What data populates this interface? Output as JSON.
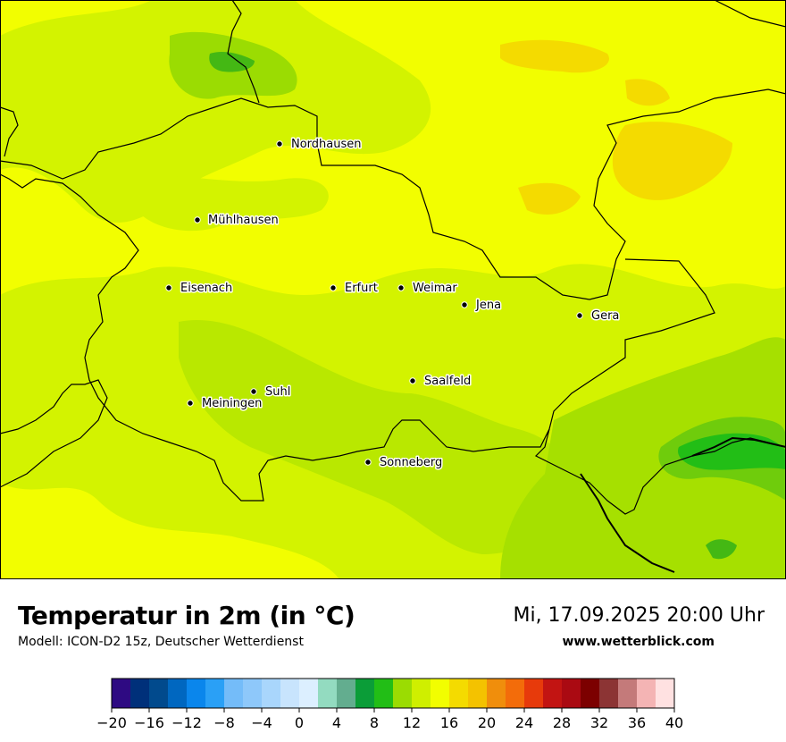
{
  "header": {
    "title": "Temperatur in 2m (in °C)",
    "model": "Modell: ICON-D2 15z, Deutscher Wetterdienst",
    "datetime": "Mi, 17.09.2025 20:00 Uhr",
    "website": "www.wetterblick.com"
  },
  "cities": [
    {
      "name": "Nordhausen"
    },
    {
      "name": "Mühlhausen"
    },
    {
      "name": "Eisenach"
    },
    {
      "name": "Erfurt"
    },
    {
      "name": "Weimar"
    },
    {
      "name": "Jena"
    },
    {
      "name": "Gera"
    },
    {
      "name": "Saalfeld"
    },
    {
      "name": "Suhl"
    },
    {
      "name": "Meiningen"
    },
    {
      "name": "Sonneberg"
    }
  ],
  "legend": {
    "unit": "°C",
    "colors": [
      "#2e0a82",
      "#00307a",
      "#014a8d",
      "#0067c0",
      "#0a86ec",
      "#2aa0f6",
      "#74bcf9",
      "#8ec8fa",
      "#a9d6fc",
      "#c8e4fd",
      "#dcefff",
      "#93dbc0",
      "#63ad8f",
      "#0b9d38",
      "#22be16",
      "#9bdc02",
      "#cfef00",
      "#f2fe00",
      "#f4db00",
      "#f4c200",
      "#f08e0c",
      "#f36c0a",
      "#e73a0b",
      "#c21412",
      "#aa0a12",
      "#7c0000",
      "#8c3434",
      "#c47a7a",
      "#f4b4b4",
      "#ffe1e1"
    ],
    "ticks": [
      "−20",
      "−16",
      "−12",
      "−8",
      "−4",
      "0",
      "4",
      "8",
      "12",
      "16",
      "20",
      "24",
      "28",
      "32",
      "36",
      "40"
    ]
  }
}
